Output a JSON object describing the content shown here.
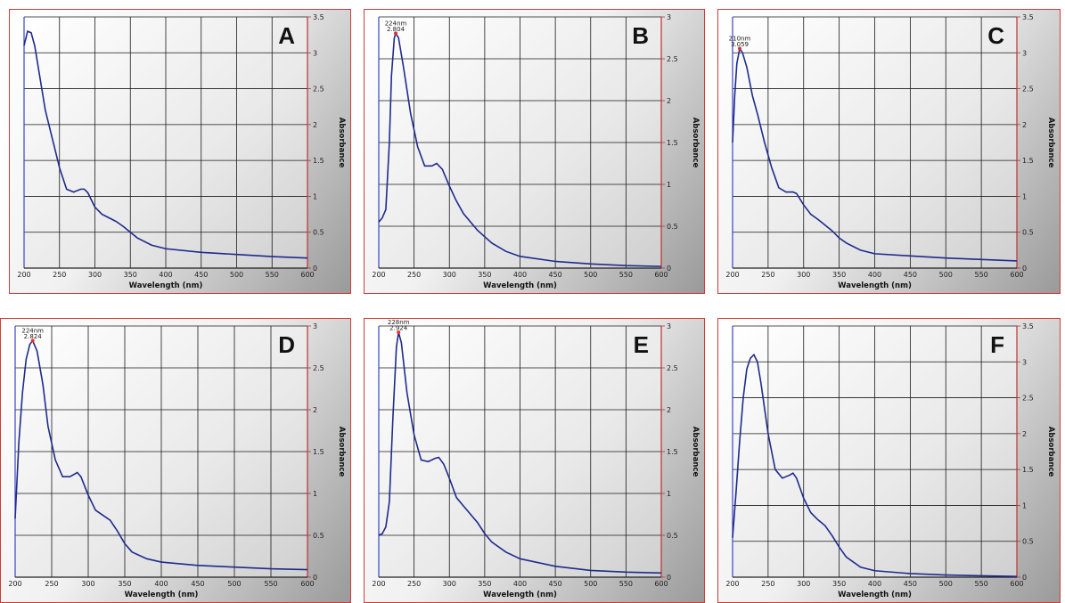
{
  "chart_data": [
    {
      "type": "line",
      "panel_label": "A",
      "xlabel": "Wavelength (nm)",
      "ylabel": "Absorbance",
      "xlim": [
        200,
        600
      ],
      "ylim": [
        0,
        3.5
      ],
      "xticks": [
        "200",
        "250",
        "300",
        "350",
        "400",
        "450",
        "500",
        "550",
        "600"
      ],
      "yticks": [
        "0",
        "0.5",
        "1",
        "1.5",
        "2",
        "2.5",
        "3",
        "3.5"
      ],
      "grid": true,
      "peak_annotation": null,
      "series": [
        {
          "x": [
            200,
            205,
            210,
            215,
            220,
            225,
            230,
            240,
            250,
            260,
            270,
            280,
            285,
            290,
            300,
            310,
            320,
            330,
            340,
            350,
            360,
            380,
            400,
            450,
            500,
            550,
            600
          ],
          "y": [
            3.1,
            3.3,
            3.28,
            3.1,
            2.8,
            2.5,
            2.2,
            1.8,
            1.4,
            1.1,
            1.06,
            1.1,
            1.1,
            1.05,
            0.85,
            0.75,
            0.7,
            0.65,
            0.58,
            0.5,
            0.42,
            0.32,
            0.27,
            0.22,
            0.19,
            0.16,
            0.14
          ]
        }
      ]
    },
    {
      "type": "line",
      "panel_label": "B",
      "xlabel": "Wavelength (nm)",
      "ylabel": "Absorbance",
      "xlim": [
        200,
        600
      ],
      "ylim": [
        0,
        3
      ],
      "xticks": [
        "200",
        "250",
        "300",
        "350",
        "400",
        "450",
        "500",
        "550",
        "600"
      ],
      "yticks": [
        "0",
        "0.5",
        "1",
        "1.5",
        "2",
        "2.5",
        "3"
      ],
      "grid": true,
      "peak_annotation": {
        "x": 224,
        "y": 2.804,
        "text1": "224nm",
        "text2": "2.804"
      },
      "series": [
        {
          "x": [
            200,
            205,
            210,
            215,
            218,
            222,
            224,
            228,
            235,
            245,
            255,
            265,
            275,
            282,
            290,
            300,
            310,
            320,
            340,
            360,
            380,
            400,
            450,
            500,
            550,
            600
          ],
          "y": [
            0.55,
            0.6,
            0.7,
            1.5,
            2.3,
            2.75,
            2.804,
            2.75,
            2.4,
            1.85,
            1.45,
            1.22,
            1.22,
            1.25,
            1.18,
            0.98,
            0.8,
            0.65,
            0.45,
            0.3,
            0.2,
            0.14,
            0.08,
            0.05,
            0.03,
            0.02
          ]
        }
      ]
    },
    {
      "type": "line",
      "panel_label": "C",
      "xlabel": "Wavelength (nm)",
      "ylabel": "Absorbance",
      "xlim": [
        200,
        600
      ],
      "ylim": [
        0,
        3.5
      ],
      "xticks": [
        "200",
        "250",
        "300",
        "350",
        "400",
        "450",
        "500",
        "550",
        "600"
      ],
      "yticks": [
        "0",
        "0.5",
        "1",
        "1.5",
        "2",
        "2.5",
        "3",
        "3.5"
      ],
      "grid": true,
      "peak_annotation": {
        "x": 210,
        "y": 3.059,
        "text1": "210nm",
        "text2": "3.059"
      },
      "series": [
        {
          "x": [
            200,
            203,
            206,
            210,
            214,
            220,
            228,
            235,
            245,
            255,
            265,
            275,
            285,
            290,
            300,
            310,
            320,
            330,
            340,
            350,
            360,
            380,
            400,
            450,
            500,
            550,
            600
          ],
          "y": [
            1.75,
            2.4,
            2.85,
            3.059,
            3.0,
            2.8,
            2.4,
            2.15,
            1.75,
            1.4,
            1.12,
            1.06,
            1.06,
            1.04,
            0.88,
            0.75,
            0.68,
            0.6,
            0.52,
            0.42,
            0.35,
            0.25,
            0.2,
            0.17,
            0.14,
            0.12,
            0.1
          ]
        }
      ]
    },
    {
      "type": "line",
      "panel_label": "D",
      "xlabel": "Wavelength (nm)",
      "ylabel": "Absorbance",
      "xlim": [
        200,
        600
      ],
      "ylim": [
        0,
        3
      ],
      "xticks": [
        "200",
        "250",
        "300",
        "350",
        "400",
        "450",
        "500",
        "550",
        "600"
      ],
      "yticks": [
        "0",
        "0.5",
        "1",
        "1.5",
        "2",
        "2.5",
        "3"
      ],
      "grid": true,
      "peak_annotation": {
        "x": 224,
        "y": 2.824,
        "text1": "224nm",
        "text2": "2.824"
      },
      "series": [
        {
          "x": [
            200,
            205,
            210,
            215,
            220,
            224,
            230,
            238,
            245,
            255,
            265,
            275,
            285,
            290,
            300,
            310,
            320,
            330,
            340,
            350,
            360,
            380,
            400,
            450,
            500,
            550,
            600
          ],
          "y": [
            0.7,
            1.6,
            2.2,
            2.6,
            2.78,
            2.824,
            2.7,
            2.3,
            1.8,
            1.4,
            1.2,
            1.2,
            1.25,
            1.2,
            0.98,
            0.8,
            0.74,
            0.68,
            0.55,
            0.4,
            0.3,
            0.22,
            0.18,
            0.14,
            0.12,
            0.1,
            0.09
          ]
        }
      ]
    },
    {
      "type": "line",
      "panel_label": "E",
      "xlabel": "Wavelength (nm)",
      "ylabel": "Absorbance",
      "xlim": [
        200,
        600
      ],
      "ylim": [
        0,
        3
      ],
      "xticks": [
        "200",
        "250",
        "300",
        "350",
        "400",
        "450",
        "500",
        "550",
        "600"
      ],
      "yticks": [
        "0",
        "0.5",
        "1",
        "1.5",
        "2",
        "2.5",
        "3"
      ],
      "grid": true,
      "peak_annotation": {
        "x": 228,
        "y": 2.924,
        "text1": "228nm",
        "text2": "2.924"
      },
      "series": [
        {
          "x": [
            200,
            205,
            210,
            215,
            220,
            225,
            228,
            232,
            240,
            250,
            260,
            270,
            280,
            285,
            292,
            300,
            310,
            320,
            330,
            340,
            350,
            360,
            380,
            400,
            450,
            500,
            550,
            600
          ],
          "y": [
            0.5,
            0.52,
            0.6,
            0.9,
            1.9,
            2.75,
            2.924,
            2.8,
            2.2,
            1.7,
            1.4,
            1.38,
            1.42,
            1.43,
            1.35,
            1.18,
            0.95,
            0.85,
            0.75,
            0.65,
            0.52,
            0.42,
            0.3,
            0.22,
            0.13,
            0.08,
            0.06,
            0.05
          ]
        }
      ]
    },
    {
      "type": "line",
      "panel_label": "F",
      "xlabel": "Wavelength (nm)",
      "ylabel": "Absorbance",
      "xlim": [
        200,
        600
      ],
      "ylim": [
        0,
        3.5
      ],
      "xticks": [
        "200",
        "250",
        "300",
        "350",
        "400",
        "450",
        "500",
        "550",
        "600"
      ],
      "yticks": [
        "0",
        "0.5",
        "1",
        "1.5",
        "2",
        "2.5",
        "3",
        "3.5"
      ],
      "grid": true,
      "peak_annotation": null,
      "series": [
        {
          "x": [
            200,
            205,
            210,
            215,
            220,
            225,
            230,
            235,
            240,
            250,
            260,
            270,
            280,
            285,
            290,
            300,
            310,
            320,
            330,
            340,
            350,
            360,
            380,
            400,
            450,
            500,
            550,
            600
          ],
          "y": [
            0.55,
            1.2,
            1.9,
            2.5,
            2.9,
            3.05,
            3.1,
            3.0,
            2.7,
            2.0,
            1.5,
            1.38,
            1.42,
            1.45,
            1.38,
            1.1,
            0.9,
            0.8,
            0.72,
            0.58,
            0.42,
            0.28,
            0.14,
            0.09,
            0.05,
            0.03,
            0.02,
            0.01
          ]
        }
      ]
    }
  ]
}
